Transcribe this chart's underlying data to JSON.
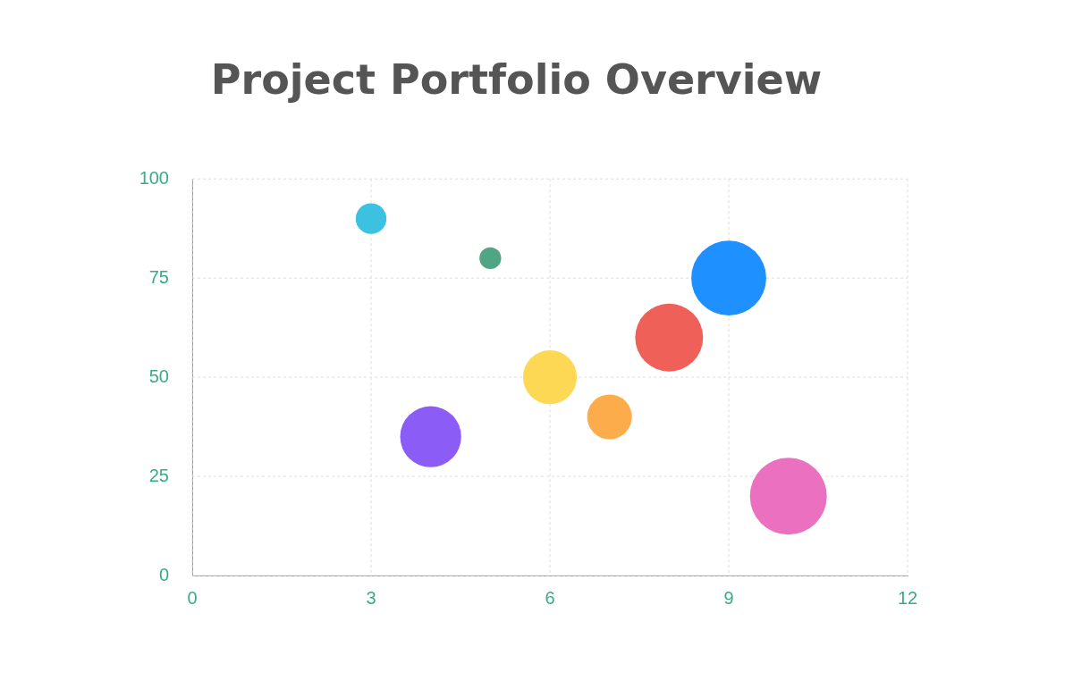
{
  "chart_data": {
    "type": "bubble",
    "title": "Project Portfolio Overview",
    "x": [
      3,
      5,
      9,
      8,
      6,
      7,
      4,
      10
    ],
    "values": [
      90,
      80,
      75,
      60,
      50,
      40,
      35,
      20
    ],
    "sizes": [
      0.16,
      0.08,
      0.95,
      0.78,
      0.49,
      0.34,
      0.63,
      1
    ],
    "colors": [
      "#3dc1e0",
      "#4fa584",
      "#1e90ff",
      "#ef6059",
      "#fdd854",
      "#fdac4b",
      "#8b5cf6",
      "#ec70c0"
    ],
    "xlim": [
      0,
      12
    ],
    "xticks": [
      0,
      3,
      6,
      9,
      12
    ],
    "ylim": [
      0,
      100
    ],
    "yticks": [
      0,
      25,
      50,
      75,
      100
    ],
    "grid": true,
    "legend": false
  }
}
